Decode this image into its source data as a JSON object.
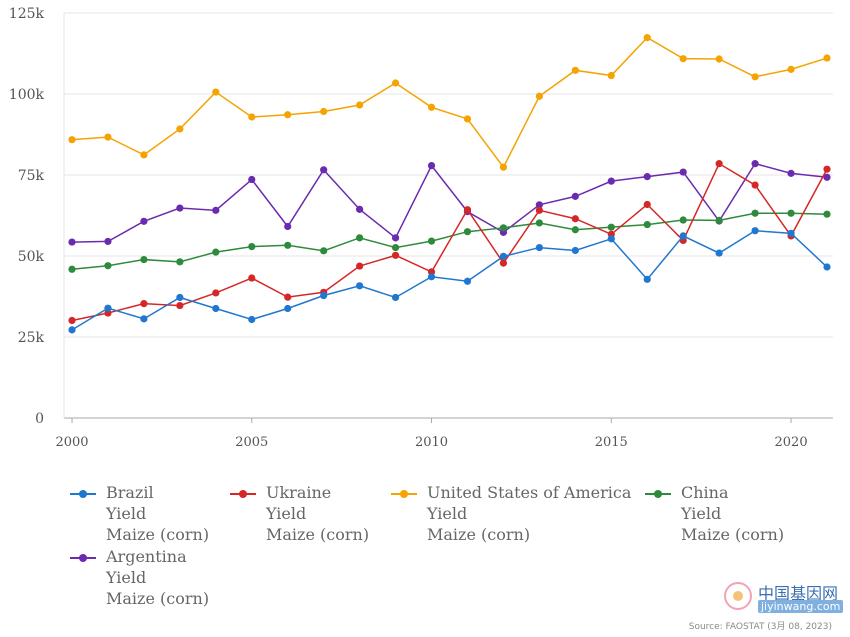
{
  "chart_data": {
    "type": "line",
    "x": [
      2000,
      2001,
      2002,
      2003,
      2004,
      2005,
      2006,
      2007,
      2008,
      2009,
      2010,
      2011,
      2012,
      2013,
      2014,
      2015,
      2016,
      2017,
      2018,
      2019,
      2020,
      2021
    ],
    "ylim": [
      0,
      125000
    ],
    "xlim": [
      2000,
      2021
    ],
    "y_ticks": [
      0,
      25000,
      50000,
      75000,
      100000,
      125000
    ],
    "y_tick_labels": [
      "0",
      "25k",
      "50k",
      "75k",
      "100k",
      "125k"
    ],
    "x_ticks": [
      2000,
      2005,
      2010,
      2015,
      2020
    ],
    "x_tick_labels": [
      "2000",
      "2005",
      "2010",
      "2015",
      "2020"
    ],
    "grid": "horizontal",
    "legend_placement": "bottom",
    "series": [
      {
        "name": "Brazil\nYield\nMaize (corn)",
        "color": "#1f77d0",
        "values": [
          27200,
          33900,
          30600,
          37200,
          33800,
          30400,
          33800,
          37800,
          40800,
          37200,
          43600,
          42200,
          49900,
          52600,
          51700,
          55300,
          42800,
          56200,
          50900,
          57800,
          57000,
          46600
        ]
      },
      {
        "name": "Ukraine\nYield\nMaize (corn)",
        "color": "#d62728",
        "values": [
          30100,
          32400,
          35300,
          34700,
          38600,
          43200,
          37300,
          38800,
          46900,
          50200,
          45100,
          64300,
          47800,
          64100,
          61500,
          56700,
          65900,
          54800,
          78500,
          71900,
          56200,
          76800
        ]
      },
      {
        "name": "United States of America\nYield\nMaize (corn)",
        "color": "#f5a300",
        "values": [
          85900,
          86700,
          81200,
          89200,
          100600,
          92900,
          93600,
          94600,
          96600,
          103400,
          95900,
          92300,
          77400,
          99300,
          107300,
          105700,
          117400,
          110900,
          110800,
          105300,
          107600,
          111100
        ]
      },
      {
        "name": "China\nYield\nMaize (corn)",
        "color": "#2e8b3c",
        "values": [
          45900,
          47000,
          48900,
          48200,
          51200,
          52900,
          53300,
          51600,
          55600,
          52600,
          54600,
          57500,
          58700,
          60200,
          58100,
          58900,
          59700,
          61100,
          61000,
          63200,
          63200,
          62900
        ]
      },
      {
        "name": "Argentina\nYield\nMaize (corn)",
        "color": "#6a2bb0",
        "values": [
          54300,
          54500,
          60700,
          64800,
          64100,
          73600,
          59100,
          76600,
          64400,
          55600,
          77900,
          63700,
          57300,
          65800,
          68400,
          73100,
          74500,
          75900,
          60800,
          78500,
          75500,
          74300
        ]
      }
    ]
  },
  "watermark": {
    "cn_text": "中国基因网",
    "url_text": "jiyinwang.com"
  },
  "source_text": "Source: FAOSTAT (3月 08, 2023)"
}
